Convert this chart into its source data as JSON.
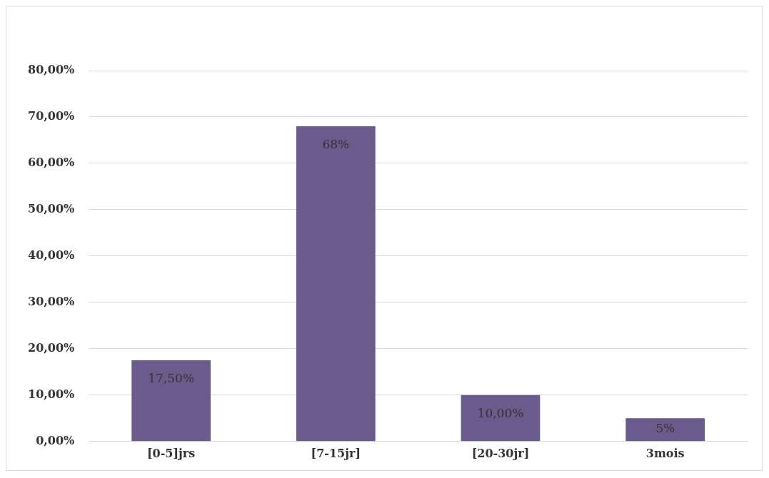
{
  "chart_data": {
    "type": "bar",
    "categories": [
      "[0-5]jrs",
      "[7-15jr]",
      "[20-30jr]",
      "3mois"
    ],
    "values": [
      17.5,
      68,
      10,
      5
    ],
    "value_labels": [
      "17,50%",
      "68%",
      "10,00%",
      "5%"
    ],
    "color": "#6b5b8c",
    "ylim": [
      0,
      80
    ],
    "yticks": [
      {
        "value": 0,
        "label": "0,00%"
      },
      {
        "value": 10,
        "label": "10,00%"
      },
      {
        "value": 20,
        "label": "20,00%"
      },
      {
        "value": 30,
        "label": "30,00%"
      },
      {
        "value": 40,
        "label": "40,00%"
      },
      {
        "value": 50,
        "label": "50,00%"
      },
      {
        "value": 60,
        "label": "60,00%"
      },
      {
        "value": 70,
        "label": "70,00%"
      },
      {
        "value": 80,
        "label": "80,00%"
      }
    ],
    "grid": "y",
    "legend": false
  }
}
